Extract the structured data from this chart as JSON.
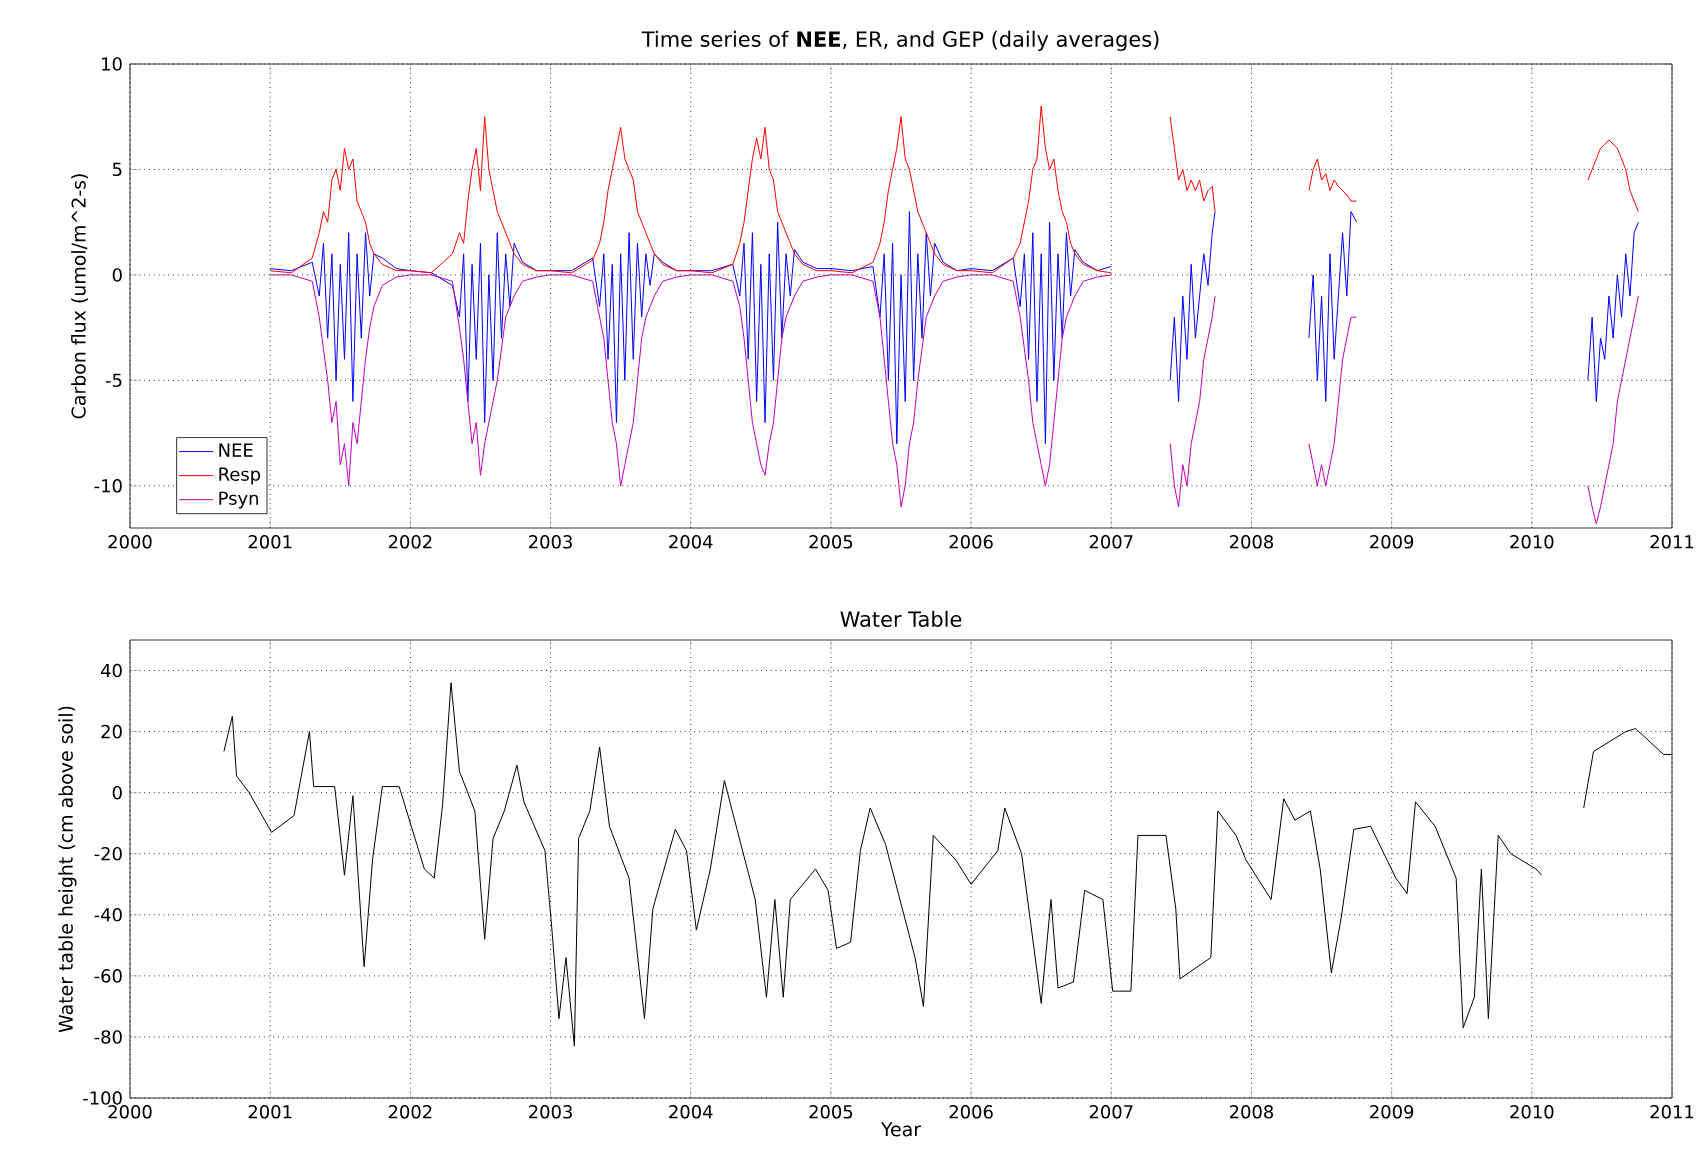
{
  "chart_data": [
    {
      "type": "line",
      "title": "Time series of **NEE**, ER, and GEP (daily averages)",
      "ylabel": "Carbon flux (umol/m^2-s)",
      "x": [
        2001.0,
        2001.15,
        2001.3,
        2001.35,
        2001.38,
        2001.41,
        2001.44,
        2001.47,
        2001.5,
        2001.53,
        2001.56,
        2001.59,
        2001.62,
        2001.65,
        2001.68,
        2001.71,
        2001.74,
        2001.8,
        2001.9,
        2002.0,
        2002.15,
        2002.3,
        2002.35,
        2002.38,
        2002.41,
        2002.44,
        2002.47,
        2002.5,
        2002.53,
        2002.56,
        2002.59,
        2002.62,
        2002.65,
        2002.68,
        2002.71,
        2002.74,
        2002.8,
        2002.9,
        2003.0,
        2003.15,
        2003.3,
        2003.35,
        2003.38,
        2003.41,
        2003.44,
        2003.47,
        2003.5,
        2003.53,
        2003.56,
        2003.59,
        2003.62,
        2003.65,
        2003.68,
        2003.71,
        2003.74,
        2003.8,
        2003.9,
        2004.0,
        2004.15,
        2004.3,
        2004.35,
        2004.38,
        2004.41,
        2004.44,
        2004.47,
        2004.5,
        2004.53,
        2004.56,
        2004.59,
        2004.62,
        2004.65,
        2004.68,
        2004.71,
        2004.74,
        2004.8,
        2004.9,
        2005.0,
        2005.15,
        2005.3,
        2005.35,
        2005.38,
        2005.41,
        2005.44,
        2005.47,
        2005.5,
        2005.53,
        2005.56,
        2005.59,
        2005.62,
        2005.65,
        2005.68,
        2005.71,
        2005.74,
        2005.8,
        2005.9,
        2006.0,
        2006.15,
        2006.3,
        2006.35,
        2006.38,
        2006.41,
        2006.44,
        2006.47,
        2006.5,
        2006.53,
        2006.56,
        2006.59,
        2006.62,
        2006.65,
        2006.68,
        2006.71,
        2006.74,
        2006.8,
        2006.9,
        2007.0,
        2007.2,
        2007.42,
        2007.45,
        2007.48,
        2007.51,
        2007.54,
        2007.57,
        2007.6,
        2007.63,
        2007.66,
        2007.69,
        2007.72,
        2007.74,
        2008.0,
        2008.41,
        2008.44,
        2008.47,
        2008.5,
        2008.53,
        2008.56,
        2008.59,
        2008.62,
        2008.65,
        2008.68,
        2008.71,
        2008.75,
        2009.5,
        2010.4,
        2010.43,
        2010.46,
        2010.49,
        2010.52,
        2010.55,
        2010.58,
        2010.61,
        2010.64,
        2010.67,
        2010.7,
        2010.73,
        2010.76
      ],
      "series": [
        {
          "name": "NEE",
          "color": "#0000ff",
          "values": [
            0.3,
            0.2,
            0.6,
            -1,
            1.5,
            -3,
            1,
            -5,
            0.5,
            -4,
            2,
            -6,
            1,
            -3,
            2,
            -1,
            1,
            0.8,
            0.3,
            0.2,
            0.1,
            -0.5,
            -2,
            1,
            -6,
            0.5,
            -4,
            1.5,
            -7,
            0,
            -5,
            2,
            -3,
            1,
            -1.5,
            1.5,
            0.6,
            0.2,
            0.2,
            0.2,
            0.8,
            -1.5,
            1,
            -4,
            0.5,
            -7,
            1,
            -5,
            2,
            -4,
            1.5,
            -2,
            1,
            -0.5,
            1,
            0.6,
            0.2,
            0.2,
            0.2,
            0.5,
            -1,
            1.5,
            -4,
            2,
            -6,
            0.5,
            -7,
            1,
            -5,
            2.5,
            -3,
            1,
            -1,
            1.2,
            0.6,
            0.3,
            0.3,
            0.2,
            0.4,
            -2,
            1,
            -5,
            1.5,
            -8,
            0,
            -6,
            3,
            -5,
            1,
            -3,
            2,
            -1,
            1.5,
            0.6,
            0.2,
            0.3,
            0.2,
            0.8,
            -1.5,
            1,
            -4,
            2,
            -6,
            1,
            -8,
            2.5,
            -5,
            1,
            -3,
            2,
            -1,
            1.2,
            0.6,
            0.2,
            0.4,
            null,
            -5,
            -2,
            -6,
            -1,
            -4,
            0.5,
            -3,
            -1,
            1,
            -0.5,
            2,
            3,
            null,
            -3,
            0,
            -5,
            -1,
            -6,
            1,
            -4,
            -1,
            2,
            -1,
            3,
            2.5,
            null,
            -5,
            -2,
            -6,
            -3,
            -4,
            -1,
            -3,
            0,
            -2,
            1,
            -1,
            2,
            2.5
          ]
        },
        {
          "name": "Resp",
          "color": "#ff0000",
          "values": [
            0.2,
            0.1,
            0.8,
            2,
            3,
            2.5,
            4.5,
            5,
            4,
            6,
            5,
            5.5,
            3.5,
            3,
            2.5,
            1.5,
            1,
            0.5,
            0.2,
            0.2,
            0.1,
            1,
            2,
            1.5,
            3.5,
            5,
            6,
            4,
            7.5,
            5,
            4,
            3,
            2.5,
            2,
            1.5,
            1,
            0.5,
            0.2,
            0.2,
            0.1,
            0.7,
            1.5,
            2.5,
            4,
            5,
            6,
            7,
            5.5,
            5,
            4.5,
            3,
            2.5,
            2,
            1.5,
            1,
            0.5,
            0.2,
            0.2,
            0.1,
            0.5,
            1.5,
            2.5,
            4,
            5.5,
            6.5,
            5.5,
            7,
            5,
            4.5,
            3,
            2.5,
            2,
            1.5,
            1,
            0.5,
            0.2,
            0.2,
            0.1,
            0.6,
            1.5,
            2.5,
            4,
            5,
            6,
            7.5,
            5.5,
            5,
            4,
            3,
            2.5,
            2,
            1.5,
            1,
            0.5,
            0.2,
            0.2,
            0.1,
            0.8,
            1.5,
            2.5,
            3.5,
            5,
            5.5,
            8,
            6,
            5,
            5.5,
            4,
            3,
            2.5,
            1.5,
            1,
            0.5,
            0.2,
            0.1,
            null,
            7.5,
            6,
            4.5,
            5,
            4,
            4.5,
            4,
            4.5,
            3.5,
            4,
            4.2,
            3,
            null,
            4,
            5,
            5.5,
            4.5,
            4.8,
            4,
            4.5,
            4.2,
            4,
            3.8,
            3.5,
            3.5,
            null,
            4.5,
            5,
            5.5,
            6,
            6.2,
            6.4,
            6.2,
            6,
            5.5,
            5,
            4,
            3.5,
            3
          ]
        },
        {
          "name": "Psyn",
          "color": "#bf00bf",
          "values": [
            0,
            0,
            -0.3,
            -2,
            -3.5,
            -5,
            -7,
            -6,
            -9,
            -8,
            -10,
            -7,
            -8,
            -6,
            -4,
            -2.5,
            -1.5,
            -0.5,
            -0.1,
            0,
            0,
            -0.3,
            -2.5,
            -4,
            -6,
            -8,
            -7,
            -9.5,
            -8,
            -7,
            -6,
            -5,
            -3.5,
            -2,
            -1.5,
            -1,
            -0.3,
            -0.1,
            0,
            0,
            -0.3,
            -2,
            -3,
            -5,
            -7,
            -8,
            -10,
            -9,
            -8,
            -7,
            -5,
            -3,
            -2,
            -1.5,
            -1,
            -0.3,
            -0.1,
            0,
            0,
            -0.3,
            -1.5,
            -3,
            -5,
            -7,
            -8,
            -9,
            -9.5,
            -8,
            -7,
            -5,
            -3,
            -2,
            -1.5,
            -1,
            -0.3,
            -0.1,
            0,
            0,
            -0.3,
            -2,
            -4,
            -6,
            -8,
            -9,
            -11,
            -10,
            -8,
            -7,
            -5,
            -3.5,
            -2,
            -1.5,
            -1,
            -0.3,
            -0.1,
            0,
            0,
            -0.3,
            -2,
            -3.5,
            -5,
            -7,
            -8,
            -9,
            -10,
            -9,
            -7,
            -5,
            -3,
            -2,
            -1.5,
            -1,
            -0.3,
            -0.1,
            0,
            null,
            -8,
            -10,
            -11,
            -9,
            -10,
            -8,
            -7,
            -6,
            -4,
            -3,
            -2,
            -1,
            null,
            -8,
            -9,
            -10,
            -9,
            -10,
            -9,
            -8,
            -6,
            -4,
            -3,
            -2,
            -2,
            null,
            -10,
            -11,
            -11.8,
            -11,
            -10,
            -9,
            -8,
            -6,
            -5,
            -4,
            -3,
            -2,
            -1
          ]
        }
      ],
      "xlim": [
        2000,
        2011
      ],
      "xticks": [
        2000,
        2001,
        2002,
        2003,
        2004,
        2005,
        2006,
        2007,
        2008,
        2009,
        2010,
        2011
      ],
      "ylim": [
        -12,
        10
      ],
      "yticks": [
        -10,
        -5,
        0,
        5,
        10
      ],
      "grid": true,
      "legend": "bottom left"
    },
    {
      "type": "line",
      "title": "Water Table",
      "xlabel": "Year",
      "ylabel": "Water table height (cm above soil)",
      "x": [
        2000.67,
        2000.73,
        2000.76,
        2000.85,
        2001.01,
        2001.17,
        2001.28,
        2001.31,
        2001.46,
        2001.53,
        2001.59,
        2001.67,
        2001.73,
        2001.8,
        2001.92,
        2002.1,
        2002.17,
        2002.23,
        2002.29,
        2002.35,
        2002.46,
        2002.53,
        2002.59,
        2002.67,
        2002.76,
        2002.81,
        2002.96,
        2003.01,
        2003.06,
        2003.11,
        2003.17,
        2003.2,
        2003.28,
        2003.35,
        2003.42,
        2003.56,
        2003.67,
        2003.73,
        2003.89,
        2003.97,
        2004.04,
        2004.14,
        2004.24,
        2004.33,
        2004.46,
        2004.54,
        2004.6,
        2004.66,
        2004.71,
        2004.89,
        2004.98,
        2005.04,
        2005.14,
        2005.21,
        2005.28,
        2005.39,
        2005.6,
        2005.66,
        2005.73,
        2005.89,
        2006.0,
        2006.19,
        2006.24,
        2006.36,
        2006.5,
        2006.57,
        2006.62,
        2006.73,
        2006.81,
        2006.94,
        2007.01,
        2007.14,
        2007.19,
        2007.39,
        2007.46,
        2007.49,
        2007.71,
        2007.76,
        2007.89,
        2007.96,
        2008.14,
        2008.23,
        2008.31,
        2008.42,
        2008.49,
        2008.57,
        2008.64,
        2008.73,
        2008.85,
        2009.03,
        2009.11,
        2009.17,
        2009.31,
        2009.46,
        2009.51,
        2009.59,
        2009.64,
        2009.69,
        2009.76,
        2009.85,
        2010.03,
        2010.07,
        2010.2,
        2010.37,
        2010.44,
        2010.67,
        2010.74,
        2010.94,
        2011.0
      ],
      "series": [
        {
          "color": "#000000",
          "values": [
            13.5,
            25,
            5.5,
            0,
            -13,
            -7.5,
            20,
            2,
            2,
            -27,
            -1,
            -57,
            -22,
            2,
            2,
            -25,
            -28,
            -4,
            36,
            7,
            -6,
            -48,
            -15,
            -6,
            9,
            -3,
            -19,
            -45,
            -74,
            -54,
            -83,
            -15,
            -6,
            15,
            -11,
            -28,
            -74,
            -38,
            -12,
            -19,
            -45,
            -25,
            4,
            -12,
            -35,
            -67,
            -35,
            -67,
            -35,
            -25,
            -32,
            -51,
            -49,
            -19,
            -5,
            -17,
            -54,
            -70,
            -14,
            -22,
            -30,
            -19,
            -5,
            -20,
            -69,
            -35,
            -64,
            -62,
            -32,
            -35,
            -65,
            -65,
            -14,
            -14,
            -38,
            -61,
            -54,
            -6,
            -14,
            -22,
            -35,
            -2,
            -9,
            -6,
            -25,
            -59,
            -41,
            -12,
            -11,
            -28,
            -33,
            -3,
            -11,
            -28,
            -77,
            -67,
            -25,
            -74,
            -14,
            -20,
            -25,
            -27,
            null,
            -5,
            13.5,
            20,
            21,
            12.5,
            12.5
          ]
        }
      ],
      "xlim": [
        2000,
        2011
      ],
      "xticks": [
        2000,
        2001,
        2002,
        2003,
        2004,
        2005,
        2006,
        2007,
        2008,
        2009,
        2010,
        2011
      ],
      "ylim": [
        -100,
        50
      ],
      "yticks": [
        -100,
        -80,
        -60,
        -40,
        -20,
        0,
        20,
        40
      ],
      "grid": true
    }
  ]
}
